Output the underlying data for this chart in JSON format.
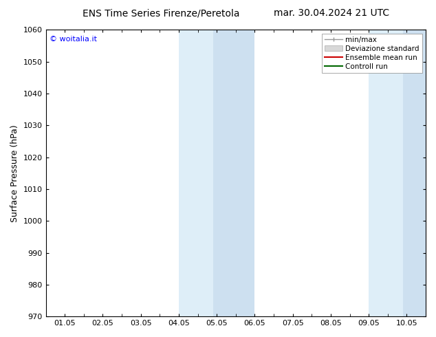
{
  "title_left": "ENS Time Series Firenze/Peretola",
  "title_right": "mar. 30.04.2024 21 UTC",
  "ylabel": "Surface Pressure (hPa)",
  "ylim": [
    970,
    1060
  ],
  "yticks": [
    970,
    980,
    990,
    1000,
    1010,
    1020,
    1030,
    1040,
    1050,
    1060
  ],
  "xtick_labels": [
    "01.05",
    "02.05",
    "03.05",
    "04.05",
    "05.05",
    "06.05",
    "07.05",
    "08.05",
    "09.05",
    "10.05"
  ],
  "xtick_positions": [
    0,
    1,
    2,
    3,
    4,
    5,
    6,
    7,
    8,
    9
  ],
  "xlim": [
    -0.5,
    9.5
  ],
  "watermark": "© woitalia.it",
  "bands": [
    {
      "left_xmin": 3.0,
      "left_xmax": 3.9,
      "right_xmin": 3.9,
      "right_xmax": 5.0
    },
    {
      "left_xmin": 8.0,
      "left_xmax": 8.9,
      "right_xmin": 8.9,
      "right_xmax": 9.5
    }
  ],
  "color_lighter": "#deeef8",
  "color_darker": "#cde0f0",
  "legend_entries": [
    {
      "label": "min/max",
      "type": "minmax"
    },
    {
      "label": "Deviazione standard",
      "type": "std"
    },
    {
      "label": "Ensemble mean run",
      "color": "#cc0000",
      "type": "line"
    },
    {
      "label": "Controll run",
      "color": "#006600",
      "type": "line"
    }
  ],
  "background_color": "#ffffff",
  "title_fontsize": 10,
  "tick_fontsize": 8,
  "label_fontsize": 9,
  "legend_fontsize": 7.5
}
